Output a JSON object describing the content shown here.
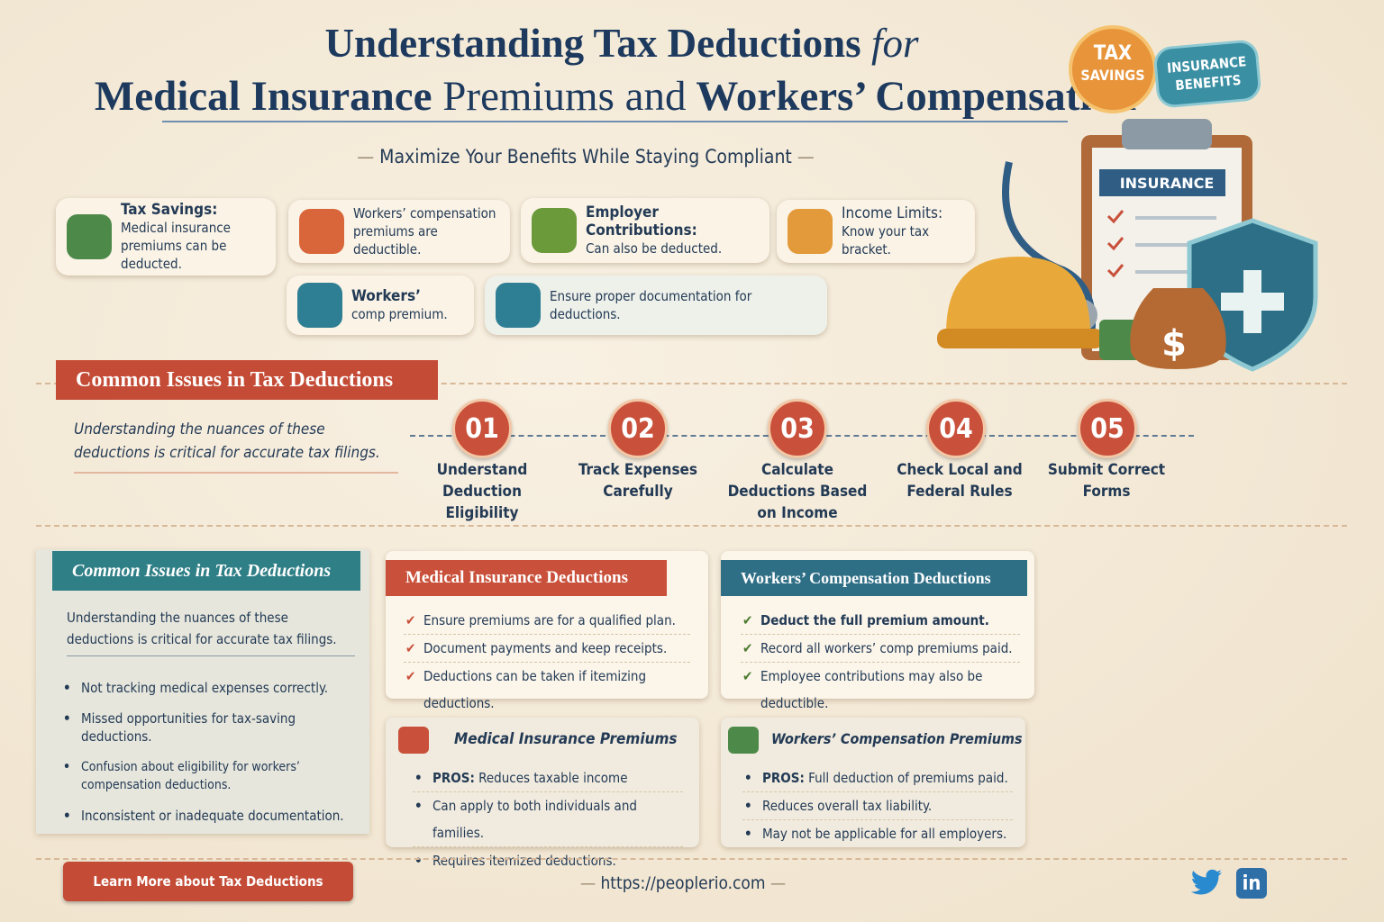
{
  "header": {
    "title_line1": "Understanding Tax Deductions",
    "title_line1_italic": "for",
    "title_line2_a": "Medical Insurance",
    "title_line2_b": "Premiums and",
    "title_line2_c": "Workers’ Compensation",
    "subtitle": "Maximize Your Benefits While Staying Compliant"
  },
  "badges": {
    "tax_top": "TAX",
    "tax_bottom": "SAVINGS",
    "ins_top": "INSURANCE",
    "ins_bottom": "BENEFITS"
  },
  "illustration": {
    "clipboard_label": "INSURANCE"
  },
  "cards": [
    {
      "title": "Tax Savings:",
      "text": "Medical insurance premiums can be deducted."
    },
    {
      "text": "Workers’ compensation premiums are deductible."
    },
    {
      "title": "Employer Contributions:",
      "text": "Can also be deducted."
    },
    {
      "title": "Income Limits:",
      "text": "Know your tax bracket."
    },
    {
      "title": "Workers’",
      "text": "comp premium."
    },
    {
      "text": "Ensure proper documentation for deductions."
    }
  ],
  "steps_section": {
    "heading": "Common Issues in Tax Deductions",
    "intro": "Understanding the nuances of these deductions is critical for accurate tax filings.",
    "steps": [
      {
        "number": "01",
        "label": "Understand Deduction Eligibility"
      },
      {
        "number": "02",
        "label": "Track Expenses Carefully"
      },
      {
        "number": "03",
        "label": "Calculate Deductions Based on Income"
      },
      {
        "number": "04",
        "label": "Check Local and Federal Rules"
      },
      {
        "number": "05",
        "label": "Submit Correct Forms"
      }
    ]
  },
  "issues_panel": {
    "heading": "Common Issues in Tax Deductions",
    "intro": "Understanding the nuances of these deductions is critical for accurate tax filings.",
    "items": [
      "Not tracking medical expenses correctly.",
      "Missed opportunities for tax-saving deductions.",
      "Confusion about eligibility for workers’ compensation deductions.",
      "Inconsistent or inadequate documentation."
    ]
  },
  "medical_deductions": {
    "heading": "Medical Insurance Deductions",
    "items": [
      "Ensure premiums are for a qualified plan.",
      "Document payments and keep receipts.",
      "Deductions can be taken if itemizing deductions."
    ]
  },
  "workers_deductions": {
    "heading": "Workers’ Compensation Deductions",
    "items": [
      "Deduct the full premium amount.",
      "Record all workers’ comp premiums paid.",
      "Employee contributions may also be deductible."
    ]
  },
  "medical_premiums": {
    "heading": "Medical Insurance Premiums",
    "pros_label": "PROS:",
    "pros_text": "Reduces taxable income",
    "items": [
      "Can apply to both individuals and families.",
      "Requires itemized deductions."
    ]
  },
  "workers_premiums": {
    "heading": "Workers’ Compensation Premiums",
    "pros_label": "PROS:",
    "pros_text": "Full deduction of premiums paid.",
    "items": [
      "Reduces overall tax liability.",
      "May not be applicable for all employers."
    ]
  },
  "footer": {
    "button": "Learn More about Tax Deductions",
    "url": "https://peoplerio.com",
    "linkedin": "in"
  }
}
